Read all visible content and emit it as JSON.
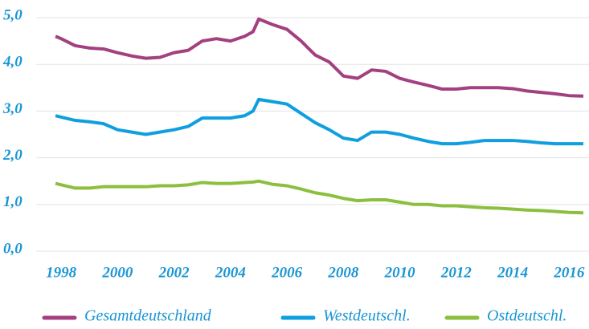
{
  "chart_data": {
    "type": "line",
    "x": [
      1997.8,
      1998,
      1998.5,
      1999,
      1999.5,
      2000,
      2000.5,
      2001,
      2001.5,
      2002,
      2002.5,
      2003,
      2003.5,
      2004,
      2004.5,
      2004.8,
      2005,
      2005.5,
      2006,
      2006.5,
      2007,
      2007.5,
      2008,
      2008.5,
      2009,
      2009.5,
      2010,
      2010.5,
      2011,
      2011.5,
      2012,
      2012.5,
      2013,
      2013.5,
      2014,
      2014.5,
      2015,
      2015.5,
      2016,
      2016.5
    ],
    "series": [
      {
        "name": "Gesamtdeutschland",
        "color": "#a3407f",
        "values": [
          4.6,
          4.55,
          4.4,
          4.35,
          4.33,
          4.25,
          4.18,
          4.13,
          4.15,
          4.25,
          4.3,
          4.5,
          4.55,
          4.5,
          4.6,
          4.7,
          4.97,
          4.85,
          4.75,
          4.5,
          4.2,
          4.05,
          3.75,
          3.7,
          3.88,
          3.85,
          3.7,
          3.62,
          3.55,
          3.47,
          3.47,
          3.5,
          3.5,
          3.5,
          3.48,
          3.43,
          3.4,
          3.37,
          3.33,
          3.32
        ]
      },
      {
        "name": "Westdeutschl.",
        "color": "#0f9fe0",
        "values": [
          2.9,
          2.87,
          2.8,
          2.77,
          2.73,
          2.6,
          2.55,
          2.5,
          2.55,
          2.6,
          2.67,
          2.85,
          2.85,
          2.85,
          2.9,
          3.0,
          3.25,
          3.2,
          3.15,
          2.95,
          2.75,
          2.6,
          2.42,
          2.37,
          2.55,
          2.55,
          2.5,
          2.42,
          2.35,
          2.3,
          2.3,
          2.33,
          2.37,
          2.37,
          2.37,
          2.35,
          2.32,
          2.3,
          2.3,
          2.3
        ]
      },
      {
        "name": "Ostdeutschl.",
        "color": "#8cbf3f",
        "values": [
          1.45,
          1.42,
          1.35,
          1.35,
          1.38,
          1.38,
          1.38,
          1.38,
          1.4,
          1.4,
          1.42,
          1.47,
          1.45,
          1.45,
          1.47,
          1.48,
          1.5,
          1.43,
          1.4,
          1.33,
          1.25,
          1.2,
          1.13,
          1.08,
          1.1,
          1.1,
          1.05,
          1.0,
          1.0,
          0.97,
          0.97,
          0.95,
          0.93,
          0.92,
          0.9,
          0.88,
          0.87,
          0.85,
          0.83,
          0.82
        ]
      }
    ],
    "xlim": [
      1997.4,
      2016.7
    ],
    "xticks": [
      1998,
      2000,
      2002,
      2004,
      2006,
      2008,
      2010,
      2012,
      2014,
      2016
    ],
    "ylim": [
      0,
      5
    ],
    "yticks": [
      {
        "value": 0,
        "label": "0,0"
      },
      {
        "value": 1,
        "label": "1,0"
      },
      {
        "value": 2,
        "label": "2,0"
      },
      {
        "value": 3,
        "label": "3,0"
      },
      {
        "value": 4,
        "label": "4,0"
      },
      {
        "value": 5,
        "label": "5,0"
      }
    ],
    "grid": true
  }
}
